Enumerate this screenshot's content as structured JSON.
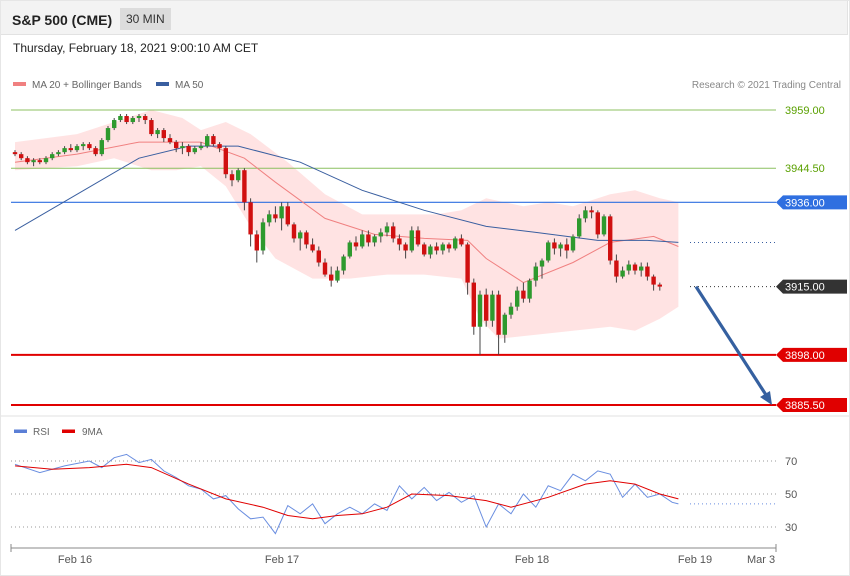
{
  "header": {
    "title": "S&P 500 (CME)",
    "interval": "30 MIN"
  },
  "datetime": "Thursday, February 18, 2021 9:00:10 AM CET",
  "legend": {
    "ma_bollinger": {
      "label": "MA 20 + Bollinger Bands",
      "color": "#f08080"
    },
    "ma50": {
      "label": "MA 50",
      "color": "#3a5fa0"
    },
    "copyright": "Research © 2021 Trading Central"
  },
  "rsi_legend": {
    "rsi": {
      "label": "RSI",
      "color": "#5b7fd6"
    },
    "ma9": {
      "label": "9MA",
      "color": "#e00000"
    }
  },
  "levels": [
    {
      "value": 3959.0,
      "label": "3959.00",
      "kind": "thin-green",
      "color": "#8cc060",
      "text_color": "#5aa000"
    },
    {
      "value": 3944.5,
      "label": "3944.50",
      "kind": "thin-green",
      "color": "#8cc060",
      "text_color": "#5aa000"
    },
    {
      "value": 3936.0,
      "label": "3936.00",
      "kind": "pivot",
      "color": "#2f6fe0"
    },
    {
      "value": 3915.0,
      "label": "3915.00",
      "kind": "current",
      "color": "#333333"
    },
    {
      "value": 3898.0,
      "label": "3898.00",
      "kind": "support",
      "color": "#e00000"
    },
    {
      "value": 3885.5,
      "label": "3885.50",
      "kind": "support",
      "color": "#e00000"
    }
  ],
  "rsi_levels": [
    "70",
    "50",
    "30"
  ],
  "x_labels": [
    "Feb 16",
    "Feb 17",
    "Feb 18",
    "Feb 19",
    "Mar 3"
  ],
  "chart_data": {
    "type": "candlestick",
    "y_range": [
      3880,
      3966
    ],
    "candles": [
      [
        3948.5,
        3949,
        3947.5,
        3948
      ],
      [
        3948,
        3948.5,
        3946.5,
        3947
      ],
      [
        3947,
        3947.5,
        3945.5,
        3946
      ],
      [
        3946,
        3947,
        3945,
        3946.5
      ],
      [
        3946.5,
        3947,
        3945.5,
        3946
      ],
      [
        3946,
        3947.5,
        3945.5,
        3947
      ],
      [
        3947,
        3948.5,
        3946.5,
        3948
      ],
      [
        3948,
        3949,
        3947.5,
        3948.5
      ],
      [
        3948.5,
        3950,
        3948,
        3949.5
      ],
      [
        3949.5,
        3950.5,
        3948.5,
        3949
      ],
      [
        3949,
        3950.5,
        3948.5,
        3950
      ],
      [
        3950,
        3951,
        3949,
        3950.5
      ],
      [
        3950.5,
        3951,
        3949,
        3949.5
      ],
      [
        3949.5,
        3950,
        3947.5,
        3948
      ],
      [
        3948,
        3952,
        3947.5,
        3951.5
      ],
      [
        3951.5,
        3955,
        3951,
        3954.5
      ],
      [
        3954.5,
        3957,
        3954,
        3956.5
      ],
      [
        3956.5,
        3958,
        3956,
        3957.5
      ],
      [
        3957.5,
        3958,
        3955.5,
        3956
      ],
      [
        3956,
        3957.5,
        3955.5,
        3957
      ],
      [
        3957,
        3958,
        3956,
        3957.5
      ],
      [
        3957.5,
        3958,
        3955.5,
        3956.5
      ],
      [
        3956.5,
        3957,
        3952.5,
        3953
      ],
      [
        3953,
        3954.5,
        3952,
        3954
      ],
      [
        3954,
        3954.5,
        3951,
        3952
      ],
      [
        3952,
        3953,
        3950.5,
        3951
      ],
      [
        3951,
        3951.5,
        3948.5,
        3949.5
      ],
      [
        3949.5,
        3951,
        3948,
        3950
      ],
      [
        3950,
        3950.5,
        3947.5,
        3948.5
      ],
      [
        3948.5,
        3950,
        3948,
        3949.5
      ],
      [
        3949.5,
        3951,
        3949,
        3950
      ],
      [
        3950,
        3953,
        3949.5,
        3952.5
      ],
      [
        3952.5,
        3953,
        3950,
        3950.5
      ],
      [
        3950.5,
        3951,
        3948.5,
        3949.5
      ],
      [
        3949.5,
        3950,
        3942,
        3943
      ],
      [
        3943,
        3944,
        3940,
        3941.5
      ],
      [
        3941.5,
        3944.5,
        3941,
        3944
      ],
      [
        3944,
        3944.5,
        3934,
        3936
      ],
      [
        3936,
        3937,
        3925,
        3928
      ],
      [
        3928,
        3929,
        3921,
        3924
      ],
      [
        3924,
        3932,
        3923,
        3931
      ],
      [
        3931,
        3934,
        3930,
        3933
      ],
      [
        3933,
        3935,
        3931,
        3932
      ],
      [
        3932,
        3936,
        3929,
        3935
      ],
      [
        3935,
        3936,
        3930,
        3930.5
      ],
      [
        3930.5,
        3931,
        3926,
        3927
      ],
      [
        3927,
        3929,
        3924,
        3928.5
      ],
      [
        3928.5,
        3929,
        3924.5,
        3925.5
      ],
      [
        3925.5,
        3927,
        3923.5,
        3924
      ],
      [
        3924,
        3925,
        3920,
        3921
      ],
      [
        3921,
        3922,
        3917.5,
        3918
      ],
      [
        3918,
        3920,
        3915,
        3916.5
      ],
      [
        3916.5,
        3920,
        3916,
        3919
      ],
      [
        3919,
        3923,
        3918,
        3922.5
      ],
      [
        3922.5,
        3926.5,
        3922,
        3926
      ],
      [
        3926,
        3927.5,
        3924,
        3925
      ],
      [
        3925,
        3929,
        3924.5,
        3928
      ],
      [
        3928,
        3929,
        3925,
        3926
      ],
      [
        3926,
        3928,
        3925,
        3927.5
      ],
      [
        3927.5,
        3929.5,
        3926,
        3928.5
      ],
      [
        3928.5,
        3931,
        3927.5,
        3930
      ],
      [
        3930,
        3931,
        3926,
        3927
      ],
      [
        3927,
        3928,
        3924,
        3925.5
      ],
      [
        3925.5,
        3926,
        3922,
        3924
      ],
      [
        3924,
        3930,
        3923.5,
        3929
      ],
      [
        3929,
        3930,
        3925,
        3925.5
      ],
      [
        3925.5,
        3926,
        3922.5,
        3923
      ],
      [
        3923,
        3925.5,
        3922,
        3925
      ],
      [
        3925,
        3926,
        3923,
        3924
      ],
      [
        3924,
        3926,
        3923,
        3925.5
      ],
      [
        3925.5,
        3926,
        3923.5,
        3924.5
      ],
      [
        3924.5,
        3927.5,
        3924,
        3927
      ],
      [
        3927,
        3928,
        3925,
        3925.5
      ],
      [
        3925.5,
        3926,
        3913,
        3916
      ],
      [
        3916,
        3917,
        3903,
        3905
      ],
      [
        3905,
        3914,
        3898,
        3913
      ],
      [
        3913,
        3914.5,
        3905,
        3906.5
      ],
      [
        3906.5,
        3914,
        3905,
        3913
      ],
      [
        3913,
        3914,
        3898,
        3903
      ],
      [
        3903,
        3908.5,
        3901,
        3908
      ],
      [
        3908,
        3911,
        3907,
        3910
      ],
      [
        3910,
        3915,
        3909,
        3914
      ],
      [
        3914,
        3916,
        3911,
        3912
      ],
      [
        3912,
        3917,
        3911,
        3916.5
      ],
      [
        3916.5,
        3921,
        3915,
        3920
      ],
      [
        3920,
        3922,
        3917,
        3921.5
      ],
      [
        3921.5,
        3926.5,
        3921,
        3926
      ],
      [
        3926,
        3927,
        3923,
        3924.5
      ],
      [
        3924.5,
        3926,
        3922.5,
        3925.5
      ],
      [
        3925.5,
        3927,
        3922,
        3924
      ],
      [
        3924,
        3928,
        3923.5,
        3927.5
      ],
      [
        3927.5,
        3933,
        3927,
        3932
      ],
      [
        3932,
        3935,
        3931,
        3934
      ],
      [
        3934,
        3935,
        3932,
        3933.5
      ],
      [
        3933.5,
        3934,
        3927,
        3928
      ],
      [
        3928,
        3933,
        3927.5,
        3932.5
      ],
      [
        3932.5,
        3933,
        3920.5,
        3921.5
      ],
      [
        3921.5,
        3923,
        3916,
        3917.5
      ],
      [
        3917.5,
        3920,
        3917,
        3919
      ],
      [
        3919,
        3921.5,
        3918,
        3920.5
      ],
      [
        3920.5,
        3921,
        3918,
        3919
      ],
      [
        3919,
        3921,
        3917.5,
        3920
      ],
      [
        3920,
        3921,
        3916.5,
        3917.5
      ],
      [
        3917.5,
        3918,
        3914,
        3915.5
      ],
      [
        3915.5,
        3916,
        3914,
        3915
      ]
    ],
    "ma20": [
      [
        0,
        3946
      ],
      [
        10,
        3948
      ],
      [
        20,
        3951
      ],
      [
        30,
        3951
      ],
      [
        37,
        3947
      ],
      [
        42,
        3941
      ],
      [
        50,
        3932
      ],
      [
        58,
        3928
      ],
      [
        66,
        3927
      ],
      [
        73,
        3926.5
      ],
      [
        76,
        3922
      ],
      [
        82,
        3916
      ],
      [
        90,
        3921
      ],
      [
        96,
        3926
      ],
      [
        103,
        3927.5
      ],
      [
        107,
        3925
      ]
    ],
    "bb_upper": [
      [
        0,
        3951
      ],
      [
        10,
        3953
      ],
      [
        18,
        3957
      ],
      [
        22,
        3959
      ],
      [
        27,
        3957
      ],
      [
        30,
        3954
      ],
      [
        34,
        3956
      ],
      [
        38,
        3953
      ],
      [
        44,
        3946
      ],
      [
        50,
        3938
      ],
      [
        56,
        3933
      ],
      [
        63,
        3933
      ],
      [
        68,
        3933
      ],
      [
        72,
        3934
      ],
      [
        76,
        3937
      ],
      [
        82,
        3935
      ],
      [
        86,
        3936
      ],
      [
        90,
        3935
      ],
      [
        96,
        3938
      ],
      [
        100,
        3939
      ],
      [
        104,
        3937
      ],
      [
        107,
        3936
      ]
    ],
    "bb_lower": [
      [
        0,
        3944
      ],
      [
        10,
        3945
      ],
      [
        16,
        3947
      ],
      [
        22,
        3944
      ],
      [
        26,
        3944
      ],
      [
        30,
        3945
      ],
      [
        34,
        3940
      ],
      [
        38,
        3930
      ],
      [
        42,
        3922
      ],
      [
        48,
        3917
      ],
      [
        54,
        3917
      ],
      [
        60,
        3918
      ],
      [
        66,
        3918
      ],
      [
        72,
        3917
      ],
      [
        75,
        3907
      ],
      [
        78,
        3902
      ],
      [
        84,
        3903
      ],
      [
        90,
        3904
      ],
      [
        96,
        3905
      ],
      [
        100,
        3904
      ],
      [
        104,
        3907
      ],
      [
        107,
        3910
      ]
    ],
    "ma50": [
      [
        0,
        3929
      ],
      [
        10,
        3938
      ],
      [
        20,
        3947
      ],
      [
        28,
        3950
      ],
      [
        36,
        3950
      ],
      [
        46,
        3946
      ],
      [
        56,
        3939
      ],
      [
        66,
        3934
      ],
      [
        76,
        3930
      ],
      [
        84,
        3928.5
      ],
      [
        94,
        3926.5
      ],
      [
        102,
        3926.5
      ],
      [
        107,
        3926
      ]
    ],
    "rsi": [
      [
        0,
        68
      ],
      [
        4,
        63
      ],
      [
        8,
        67
      ],
      [
        12,
        70
      ],
      [
        14,
        66
      ],
      [
        16,
        72
      ],
      [
        18,
        74
      ],
      [
        20,
        69
      ],
      [
        22,
        71
      ],
      [
        24,
        64
      ],
      [
        26,
        60
      ],
      [
        28,
        55
      ],
      [
        30,
        53
      ],
      [
        32,
        47
      ],
      [
        34,
        49
      ],
      [
        36,
        41
      ],
      [
        38,
        35
      ],
      [
        40,
        36
      ],
      [
        42,
        26
      ],
      [
        44,
        43
      ],
      [
        46,
        38
      ],
      [
        48,
        44
      ],
      [
        50,
        32
      ],
      [
        52,
        38
      ],
      [
        54,
        42
      ],
      [
        56,
        38
      ],
      [
        58,
        44
      ],
      [
        60,
        40
      ],
      [
        62,
        55
      ],
      [
        64,
        47
      ],
      [
        66,
        54
      ],
      [
        68,
        46
      ],
      [
        70,
        51
      ],
      [
        72,
        45
      ],
      [
        74,
        49
      ],
      [
        76,
        30
      ],
      [
        78,
        44
      ],
      [
        80,
        38
      ],
      [
        82,
        50
      ],
      [
        84,
        42
      ],
      [
        86,
        55
      ],
      [
        88,
        52
      ],
      [
        90,
        62
      ],
      [
        92,
        58
      ],
      [
        94,
        64
      ],
      [
        96,
        62
      ],
      [
        98,
        48
      ],
      [
        100,
        56
      ],
      [
        102,
        48
      ],
      [
        104,
        50
      ],
      [
        106,
        45
      ],
      [
        107,
        44
      ]
    ],
    "rsi_ma": [
      [
        0,
        67
      ],
      [
        6,
        65
      ],
      [
        12,
        66
      ],
      [
        18,
        68
      ],
      [
        22,
        66
      ],
      [
        28,
        56
      ],
      [
        34,
        47
      ],
      [
        40,
        42
      ],
      [
        44,
        37
      ],
      [
        48,
        35
      ],
      [
        52,
        37
      ],
      [
        56,
        38
      ],
      [
        60,
        42
      ],
      [
        64,
        50
      ],
      [
        70,
        49
      ],
      [
        76,
        46
      ],
      [
        80,
        42
      ],
      [
        86,
        48
      ],
      [
        92,
        56
      ],
      [
        96,
        58
      ],
      [
        100,
        56
      ],
      [
        104,
        50
      ],
      [
        107,
        47
      ]
    ],
    "rsi_range": [
      18,
      85
    ]
  }
}
